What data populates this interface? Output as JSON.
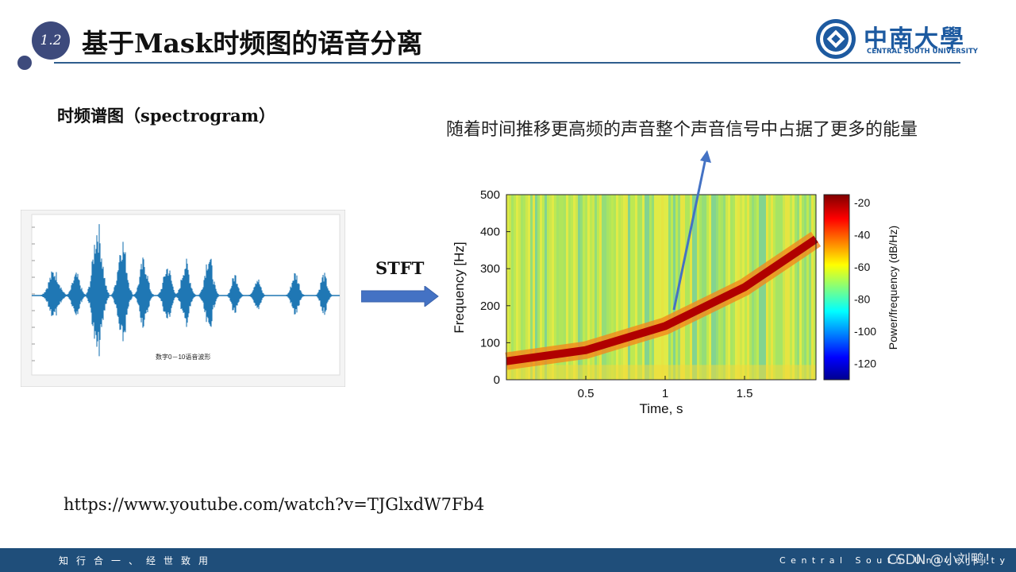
{
  "header": {
    "section_number": "1.2",
    "title": "基于Mask时频图的语音分离",
    "logo_cn": "中南大學",
    "logo_en": "CENTRAL SOUTH UNIVERSITY"
  },
  "content": {
    "heading": "时频谱图（spectrogram）",
    "annotation": "随着时间推移更高频的声音整个声音信号中占据了更多的能量",
    "stft_label": "STFT",
    "waveform_caption": "数字0－10语音波形",
    "url": "https://www.youtube.com/watch?v=TJGlxdW7Fb4"
  },
  "footer": {
    "left": "知行合一、经世致用",
    "right": "Central South University",
    "watermark": "CSDN @小刘鸭！"
  },
  "colors": {
    "brand_blue": "#1d5aa0",
    "badge": "#3d4a7c",
    "footer": "#1f4e7a",
    "waveform": "#1f77b4",
    "arrow": "#4472c4"
  },
  "chart_data": [
    {
      "type": "heatmap",
      "title": "",
      "xlabel": "Time, s",
      "ylabel": "Frequency [Hz]",
      "xlim": [
        0,
        1.95
      ],
      "ylim": [
        0,
        500
      ],
      "xticks": [
        "0.5",
        "1",
        "1.5"
      ],
      "yticks": [
        "0",
        "100",
        "200",
        "300",
        "400",
        "500"
      ],
      "colorbar": {
        "label": "Power/frequency (dB/Hz)",
        "ticks": [
          "-20",
          "-40",
          "-60",
          "-80",
          "-100",
          "-120"
        ],
        "range": [
          -130,
          -15
        ]
      },
      "chirp": {
        "x": [
          0,
          0.5,
          1,
          1.5,
          1.95
        ],
        "y": [
          50,
          80,
          145,
          250,
          380
        ]
      }
    },
    {
      "type": "line",
      "title": "数字0－10语音波形",
      "ylim": [
        -1,
        1
      ]
    }
  ]
}
